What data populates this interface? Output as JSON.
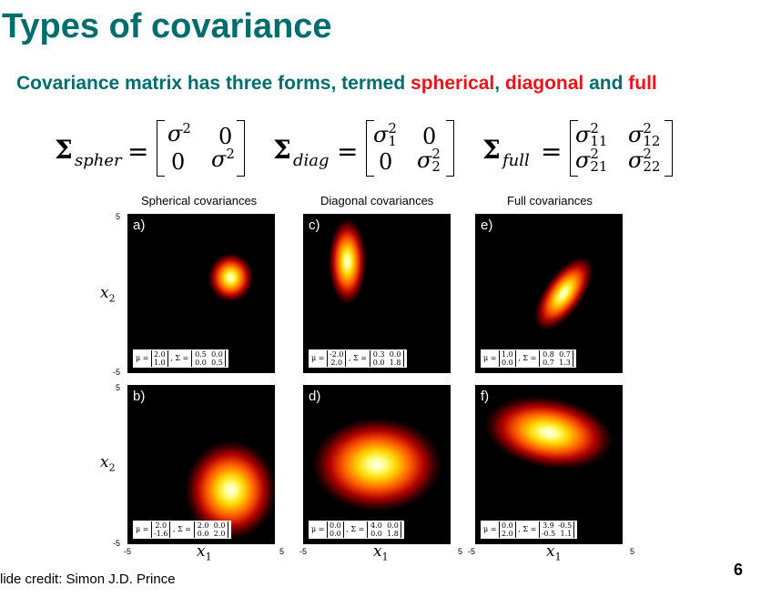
{
  "slide": {
    "title": "Types of covariance",
    "subtitle_prefix": "Covariance matrix has three forms, termed ",
    "subtitle_word_1": "spherical",
    "subtitle_sep_1": ", ",
    "subtitle_word_2": "diagonal",
    "subtitle_sep_2": " and ",
    "subtitle_word_3": "full",
    "credit": "lide credit: Simon J.D. Prince",
    "page_number": "6",
    "accent_color": "#006d6d",
    "highlight_color": "#e8141b"
  },
  "equations": {
    "spher": {
      "symbol": "Σ",
      "subscript": "spher",
      "equals": "=",
      "m11": "σ",
      "m11_sup": "2",
      "m12": "0",
      "m21": "0",
      "m22": "σ",
      "m22_sup": "2"
    },
    "diag": {
      "symbol": "Σ",
      "subscript": "diag",
      "equals": "=",
      "m11": "σ",
      "m11_sup": "2",
      "m11_sub": "1",
      "m12": "0",
      "m21": "0",
      "m22": "σ",
      "m22_sup": "2",
      "m22_sub": "2"
    },
    "full": {
      "symbol": "Σ",
      "subscript": "full",
      "equals": "=",
      "m11": "σ",
      "m11_sup": "2",
      "m11_sub": "11",
      "m12": "σ",
      "m12_sup": "2",
      "m12_sub": "12",
      "m21": "σ",
      "m21_sup": "2",
      "m21_sub": "21",
      "m22": "σ",
      "m22_sup": "2",
      "m22_sub": "22"
    }
  },
  "figure": {
    "column_titles": [
      "Spherical covariances",
      "Diagonal covariances",
      "Full covariances"
    ],
    "axis": {
      "x_label": "x",
      "x_label_sub": "1",
      "y_label": "x",
      "y_label_sub": "2",
      "min_label": "-5",
      "max_label": "5"
    },
    "panels": [
      {
        "label": "a)",
        "mu": [
          "2.0",
          "1.0"
        ],
        "sigma": [
          [
            "0.5",
            "0.0"
          ],
          [
            "0.0",
            "0.5"
          ]
        ]
      },
      {
        "label": "b)",
        "mu": [
          "2.0",
          "-1.6"
        ],
        "sigma": [
          [
            "2.0",
            "0.0"
          ],
          [
            "0.0",
            "2.0"
          ]
        ]
      },
      {
        "label": "c)",
        "mu": [
          "-2.0",
          "2.0"
        ],
        "sigma": [
          [
            "0.3",
            "0.0"
          ],
          [
            "0.0",
            "1.8"
          ]
        ]
      },
      {
        "label": "d)",
        "mu": [
          "0.0",
          "0.0"
        ],
        "sigma": [
          [
            "4.0",
            "0.0"
          ],
          [
            "0.0",
            "1.8"
          ]
        ]
      },
      {
        "label": "e)",
        "mu": [
          "1.0",
          "0.0"
        ],
        "sigma": [
          [
            "0.8",
            "0.7"
          ],
          [
            "0.7",
            "1.3"
          ]
        ]
      },
      {
        "label": "f)",
        "mu": [
          "0.0",
          "2.0"
        ],
        "sigma": [
          [
            "3.9",
            "-0.5"
          ],
          [
            "-0.5",
            "1.1"
          ]
        ]
      }
    ],
    "caption_mu_symbol": "μ =",
    "caption_sigma_symbol": "Σ ="
  }
}
